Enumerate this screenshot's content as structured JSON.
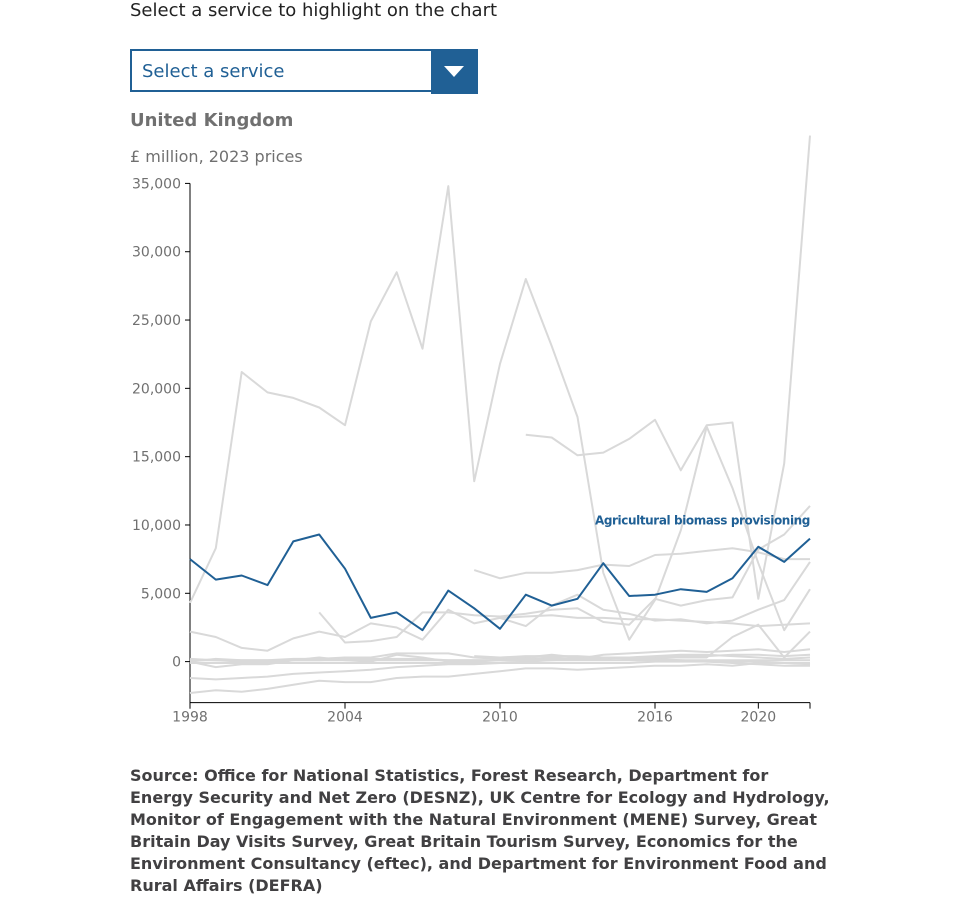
{
  "controls": {
    "prompt": "Select a service to highlight on the chart",
    "select_label": "Select a service"
  },
  "chart_title": "United Kingdom",
  "chart_unit": "£ million, 2023 prices",
  "source": "Source: Office for National Statistics, Forest Research, Department for Energy Security and Net Zero (DESNZ), UK Centre for Ecology and Hydrology, Monitor of Engagement with the Natural Environment (MENE) Survey, Great Britain Day Visits Survey, Great Britain Tourism Survey, Economics for the Environment Consultancy (eftec), and Department for Environment Food and Rural Affairs (DEFRA)",
  "colors": {
    "highlight": "#206095",
    "muted": "#d9d9d9",
    "axis": "#000000",
    "text": "#707070"
  },
  "chart_data": {
    "type": "line",
    "title": "United Kingdom",
    "ylabel": "£ million, 2023 prices",
    "xlim": [
      1998,
      2022
    ],
    "ylim": [
      -3000,
      35000
    ],
    "yticks": [
      0,
      5000,
      10000,
      15000,
      20000,
      25000,
      30000,
      35000
    ],
    "ytick_labels": [
      "0",
      "5,000",
      "10,000",
      "15,000",
      "20,000",
      "25,000",
      "30,000",
      "35,000"
    ],
    "xticks": [
      1998,
      2004,
      2010,
      2016,
      2020
    ],
    "xtick_labels": [
      "1998",
      "2004",
      "2010",
      "2016",
      "2020"
    ],
    "highlighted": "Agricultural biomass provisioning",
    "series": [
      {
        "name": "Agricultural biomass provisioning",
        "highlight": true,
        "x": [
          1998,
          1999,
          2000,
          2001,
          2002,
          2003,
          2004,
          2005,
          2006,
          2007,
          2008,
          2009,
          2010,
          2011,
          2012,
          2013,
          2014,
          2015,
          2016,
          2017,
          2018,
          2019,
          2020,
          2021,
          2022
        ],
        "y": [
          7500,
          6000,
          6300,
          5600,
          8800,
          9300,
          6800,
          3200,
          3600,
          2300,
          5200,
          3900,
          2400,
          4900,
          4100,
          4600,
          7200,
          4800,
          4900,
          5300,
          5100,
          6100,
          8400,
          7300,
          9000
        ]
      },
      {
        "x": [
          1998,
          1999,
          2000,
          2001,
          2002,
          2003,
          2004,
          2005,
          2006,
          2007,
          2008,
          2009,
          2010,
          2011,
          2012,
          2013,
          2014,
          2015,
          2016,
          2017,
          2018,
          2019,
          2020,
          2021,
          2022
        ],
        "y": [
          4300,
          8300,
          21200,
          19700,
          19300,
          18600,
          17300,
          24900,
          28500,
          22900,
          34800,
          13200,
          21800,
          28000,
          23100,
          17900,
          6500,
          1600,
          4500,
          9600,
          17200,
          12700,
          7200,
          2300,
          5300
        ]
      },
      {
        "x": [
          2011,
          2012,
          2013,
          2014,
          2015,
          2016,
          2017,
          2018,
          2019,
          2020,
          2021,
          2022
        ],
        "y": [
          16600,
          16400,
          15100,
          15300,
          16300,
          17700,
          14000,
          17300,
          17500,
          4600,
          14500,
          38500
        ]
      },
      {
        "x": [
          2009,
          2010,
          2011,
          2012,
          2013,
          2014,
          2015,
          2016,
          2017,
          2018,
          2019,
          2020,
          2021,
          2022
        ],
        "y": [
          6700,
          6100,
          6500,
          6500,
          6700,
          7100,
          7000,
          7800,
          7900,
          8100,
          8300,
          8000,
          7500,
          7500
        ]
      },
      {
        "x": [
          2003,
          2004,
          2005,
          2006,
          2007,
          2008,
          2009,
          2010,
          2011,
          2012,
          2013,
          2014,
          2015,
          2016,
          2017,
          2018,
          2019,
          2020,
          2021,
          2022
        ],
        "y": [
          3600,
          1400,
          1500,
          1800,
          3600,
          3600,
          3400,
          3300,
          3500,
          3800,
          3900,
          2900,
          2700,
          4600,
          4100,
          4500,
          4700,
          8200,
          9300,
          11400
        ]
      },
      {
        "x": [
          1998,
          1999,
          2000,
          2001,
          2002,
          2003,
          2004,
          2005,
          2006,
          2007,
          2008,
          2009,
          2010,
          2011,
          2012,
          2013,
          2014,
          2015,
          2016,
          2017,
          2018,
          2019,
          2020,
          2021,
          2022
        ],
        "y": [
          2200,
          1800,
          1000,
          800,
          1700,
          2200,
          1800,
          2800,
          2500,
          1600,
          3800,
          2800,
          3200,
          2600,
          4100,
          4900,
          3800,
          3500,
          3000,
          3100,
          2800,
          3000,
          3800,
          4500,
          7300
        ]
      },
      {
        "x": [
          1998,
          1999,
          2000,
          2001,
          2002,
          2003,
          2004,
          2005,
          2006,
          2007,
          2008,
          2009,
          2010,
          2011,
          2012,
          2013,
          2014,
          2015,
          2016,
          2017,
          2018,
          2019,
          2020,
          2021,
          2022
        ],
        "y": [
          0,
          200,
          100,
          100,
          200,
          200,
          300,
          300,
          600,
          600,
          600,
          300,
          200,
          300,
          500,
          300,
          300,
          300,
          300,
          300,
          300,
          1800,
          2700,
          300,
          2200
        ]
      },
      {
        "x": [
          2010,
          2011,
          2012,
          2013,
          2014,
          2015,
          2016,
          2017,
          2018,
          2019,
          2020,
          2021,
          2022
        ],
        "y": [
          3200,
          3300,
          3400,
          3200,
          3200,
          3100,
          3100,
          3000,
          2900,
          2800,
          2600,
          2700,
          2800
        ]
      },
      {
        "x": [
          1998,
          1999,
          2000,
          2001,
          2002,
          2003,
          2004,
          2005,
          2006,
          2007,
          2008,
          2009,
          2010,
          2011,
          2012,
          2013,
          2014,
          2015,
          2016,
          2017,
          2018,
          2019,
          2020,
          2021,
          2022
        ],
        "y": [
          0,
          -400,
          -200,
          -200,
          100,
          300,
          100,
          0,
          500,
          300,
          0,
          0,
          100,
          200,
          300,
          200,
          500,
          600,
          700,
          800,
          700,
          800,
          900,
          700,
          900
        ]
      },
      {
        "x": [
          1998,
          1999,
          2000,
          2001,
          2002,
          2003,
          2004,
          2005,
          2006,
          2007,
          2008,
          2009,
          2010,
          2011,
          2012,
          2013,
          2014,
          2015,
          2016,
          2017,
          2018,
          2019,
          2020,
          2021,
          2022
        ],
        "y": [
          -1200,
          -1300,
          -1200,
          -1100,
          -900,
          -800,
          -700,
          -600,
          -400,
          -300,
          -200,
          -200,
          -100,
          0,
          100,
          200,
          200,
          300,
          400,
          500,
          500,
          400,
          300,
          200,
          300
        ]
      },
      {
        "x": [
          1998,
          1999,
          2000,
          2001,
          2002,
          2003,
          2004,
          2005,
          2006,
          2007,
          2008,
          2009,
          2010,
          2011,
          2012,
          2013,
          2014,
          2015,
          2016,
          2017,
          2018,
          2019,
          2020,
          2021,
          2022
        ],
        "y": [
          -2300,
          -2100,
          -2200,
          -2000,
          -1700,
          -1400,
          -1500,
          -1500,
          -1200,
          -1100,
          -1100,
          -900,
          -700,
          -500,
          -500,
          -600,
          -500,
          -400,
          -300,
          -300,
          -200,
          -300,
          -100,
          -100,
          -200
        ]
      },
      {
        "x": [
          1998,
          1999,
          2000,
          2001,
          2002,
          2003,
          2004,
          2005,
          2006,
          2007,
          2008,
          2009,
          2010,
          2011,
          2012,
          2013,
          2014,
          2015,
          2016,
          2017,
          2018,
          2019,
          2020,
          2021,
          2022
        ],
        "y": [
          200,
          100,
          0,
          0,
          100,
          100,
          200,
          200,
          200,
          200,
          100,
          100,
          100,
          100,
          200,
          200,
          300,
          300,
          300,
          400,
          400,
          500,
          500,
          400,
          500
        ]
      },
      {
        "x": [
          1998,
          1999,
          2000,
          2001,
          2002,
          2003,
          2004,
          2005,
          2006,
          2007,
          2008,
          2009,
          2010,
          2011,
          2012,
          2013,
          2014,
          2015,
          2016,
          2017,
          2018,
          2019,
          2020,
          2021,
          2022
        ],
        "y": [
          100,
          100,
          100,
          100,
          100,
          100,
          100,
          100,
          100,
          100,
          100,
          100,
          100,
          100,
          100,
          100,
          100,
          100,
          100,
          100,
          100,
          100,
          100,
          100,
          100
        ]
      },
      {
        "x": [
          2009,
          2010,
          2011,
          2012,
          2013,
          2014,
          2015,
          2016,
          2017,
          2018,
          2019,
          2020,
          2021,
          2022
        ],
        "y": [
          400,
          300,
          400,
          400,
          400,
          300,
          200,
          200,
          100,
          0,
          -100,
          -200,
          -300,
          -300
        ]
      },
      {
        "x": [
          1998,
          1999,
          2000,
          2001,
          2002,
          2003,
          2004,
          2005,
          2006,
          2007,
          2008,
          2009,
          2010,
          2011,
          2012,
          2013,
          2014,
          2015,
          2016,
          2017,
          2018,
          2019,
          2020,
          2021,
          2022
        ],
        "y": [
          -100,
          -100,
          -100,
          -100,
          -100,
          -100,
          -100,
          -100,
          -100,
          -100,
          -100,
          -100,
          -100,
          -100,
          -100,
          -100,
          -100,
          -100,
          0,
          0,
          0,
          0,
          0,
          -100,
          -100
        ]
      }
    ]
  }
}
